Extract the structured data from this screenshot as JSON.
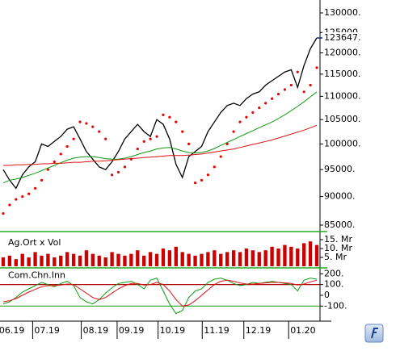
{
  "chart_data": [
    {
      "type": "line",
      "log_scale": true,
      "xlim": [
        -0.5,
        49.5
      ],
      "ylim": [
        85000,
        130000
      ],
      "yticks": [
        {
          "value": 85000,
          "label": "85000."
        },
        {
          "value": 90000,
          "label": "90000."
        },
        {
          "value": 95000,
          "label": "95000."
        },
        {
          "value": 100000,
          "label": "100000."
        },
        {
          "value": 105000,
          "label": "105000."
        },
        {
          "value": 110000,
          "label": "110000."
        },
        {
          "value": 115000,
          "label": "115000."
        },
        {
          "value": 120000,
          "label": "120000."
        },
        {
          "value": 125000,
          "label": "125000."
        },
        {
          "value": 130000,
          "label": "130000."
        }
      ],
      "last_label": "123647.",
      "last_color": "#1c1c6e",
      "series": [
        {
          "color": "#000000",
          "values": [
            95000,
            93000,
            91500,
            94000,
            95500,
            96500,
            100000,
            99500,
            100500,
            101500,
            103000,
            103500,
            101000,
            98500,
            97000,
            95500,
            95000,
            96500,
            98500,
            101000,
            102500,
            104000,
            102500,
            101500,
            105000,
            104000,
            101000,
            96000,
            93500,
            97500,
            98500,
            99500,
            102500,
            104500,
            106500,
            108000,
            108500,
            108000,
            109500,
            110500,
            111000,
            112500,
            113500,
            114500,
            115500,
            116000,
            112000,
            117000,
            121000,
            123647
          ]
        },
        {
          "color": "#ee0000",
          "style": "dots",
          "values": [
            87000,
            88500,
            89500,
            90000,
            90500,
            91500,
            93000,
            95000,
            96500,
            98000,
            99500,
            101000,
            104500,
            104200,
            103500,
            102500,
            101000,
            94000,
            94500,
            95500,
            97000,
            99000,
            100500,
            101000,
            101500,
            106000,
            105500,
            104500,
            102500,
            100000,
            92500,
            93000,
            94000,
            95500,
            97500,
            100000,
            102500,
            104500,
            105500,
            106500,
            107500,
            108500,
            109500,
            110500,
            111500,
            112500,
            115500,
            111000,
            112500,
            116500
          ]
        },
        {
          "color": "#119911",
          "values": [
            92500,
            93000,
            93200,
            93500,
            93900,
            94300,
            94800,
            95300,
            95800,
            96300,
            96800,
            97200,
            97400,
            97500,
            97500,
            97300,
            97100,
            97000,
            97000,
            97200,
            97500,
            97900,
            98300,
            98600,
            99000,
            99200,
            99300,
            99000,
            98600,
            98300,
            98200,
            98300,
            98600,
            99100,
            99700,
            100300,
            100900,
            101500,
            102100,
            102700,
            103300,
            103900,
            104500,
            105200,
            106000,
            106900,
            107800,
            108800,
            109900,
            111000
          ]
        },
        {
          "color": "#dd1111",
          "values": [
            95800,
            95800,
            95900,
            95900,
            96000,
            96000,
            96100,
            96100,
            96200,
            96200,
            96300,
            96400,
            96400,
            96500,
            96600,
            96600,
            96700,
            96800,
            96900,
            97000,
            97100,
            97200,
            97300,
            97400,
            97500,
            97600,
            97700,
            97700,
            97700,
            97800,
            97900,
            98000,
            98200,
            98400,
            98600,
            98800,
            99000,
            99300,
            99600,
            99900,
            100200,
            100500,
            100800,
            101200,
            101600,
            102000,
            102400,
            102800,
            103300,
            103800
          ]
        }
      ]
    },
    {
      "type": "bar",
      "title": "Ag.Ort x Vol",
      "xlim": [
        -0.5,
        49.5
      ],
      "ylim": [
        0,
        16
      ],
      "yticks": [
        {
          "value": 5,
          "label": "5. Mr"
        },
        {
          "value": 10,
          "label": "10. Mr"
        },
        {
          "value": 15,
          "label": "15. Mr"
        }
      ],
      "color": "#cc0000",
      "values": [
        5,
        6,
        4,
        7,
        5,
        8,
        6,
        7,
        5,
        6,
        8,
        7,
        6,
        9,
        7,
        6,
        5,
        8,
        7,
        6,
        7,
        9,
        6,
        8,
        7,
        10,
        9,
        11,
        8,
        7,
        6,
        7,
        8,
        9,
        7,
        8,
        9,
        8,
        10,
        9,
        8,
        9,
        11,
        10,
        12,
        11,
        10,
        13,
        14,
        12
      ]
    },
    {
      "type": "line",
      "title": "Com.Chn.Inn",
      "xlim": [
        -0.5,
        49.5
      ],
      "ylim": [
        -180,
        230
      ],
      "yticks": [
        {
          "value": -100,
          "label": "-100."
        },
        0,
        {
          "value": 100,
          "label": "100."
        },
        {
          "value": 200,
          "label": "200."
        }
      ],
      "ref_lines": [
        {
          "value": 100,
          "color": "#aa0000"
        },
        {
          "value": -100,
          "color": "#22aa22"
        }
      ],
      "xticks": [
        {
          "value": -0.9,
          "label": "06.19"
        },
        {
          "value": 4.6,
          "label": "07.19"
        },
        {
          "value": 12.2,
          "label": "08.19"
        },
        {
          "value": 17.8,
          "label": "09.19"
        },
        {
          "value": 24.2,
          "label": "10.19"
        },
        {
          "value": 31.1,
          "label": "11.19"
        },
        {
          "value": 37.6,
          "label": "12.19"
        },
        {
          "value": 44.6,
          "label": "01.20"
        }
      ],
      "series": [
        {
          "color": "#119911",
          "values": [
            -80,
            -60,
            -20,
            30,
            60,
            90,
            120,
            100,
            80,
            110,
            130,
            90,
            -20,
            -60,
            -80,
            -40,
            20,
            70,
            110,
            120,
            130,
            100,
            60,
            140,
            160,
            40,
            -80,
            -170,
            -140,
            -20,
            40,
            60,
            120,
            150,
            160,
            140,
            110,
            90,
            100,
            120,
            110,
            120,
            130,
            120,
            110,
            100,
            40,
            140,
            160,
            150
          ]
        },
        {
          "color": "#dd1111",
          "values": [
            -60,
            -50,
            -30,
            0,
            30,
            55,
            80,
            90,
            90,
            95,
            105,
            100,
            60,
            20,
            -20,
            -40,
            -20,
            20,
            60,
            90,
            110,
            110,
            95,
            100,
            120,
            100,
            40,
            -40,
            -100,
            -90,
            -50,
            0,
            50,
            100,
            130,
            140,
            130,
            115,
            105,
            105,
            110,
            115,
            120,
            120,
            115,
            110,
            95,
            105,
            125,
            140
          ]
        }
      ]
    }
  ]
}
